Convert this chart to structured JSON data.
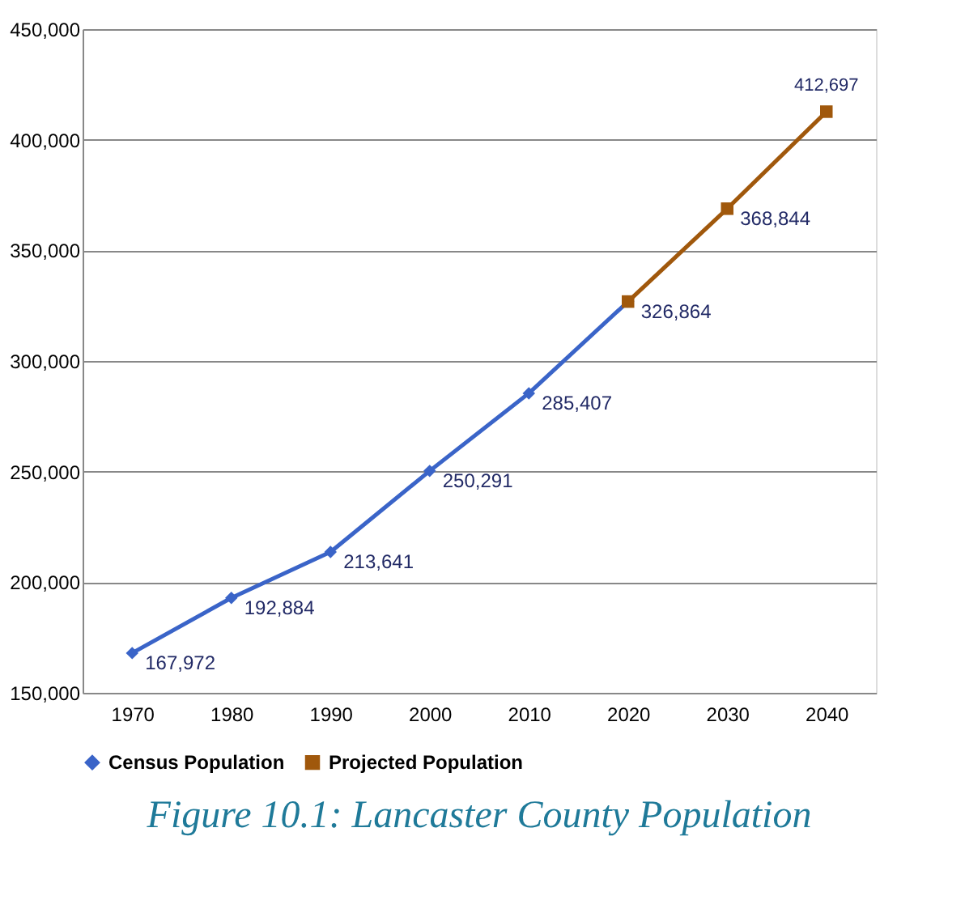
{
  "chart_data": {
    "type": "line",
    "title": "Figure 10.1: Lancaster County Population",
    "categories": [
      "1970",
      "1980",
      "1990",
      "2000",
      "2010",
      "2020",
      "2030",
      "2040"
    ],
    "series": [
      {
        "name": "Census Population",
        "color": "#3a64c8",
        "marker": "diamond",
        "values": [
          167972,
          192884,
          213641,
          250291,
          285407,
          326864,
          null,
          null
        ],
        "value_labels": [
          "167,972",
          "192,884",
          "213,641",
          "250,291",
          "285,407",
          "326,864",
          null,
          null
        ]
      },
      {
        "name": "Projected Population",
        "color": "#a0580c",
        "marker": "square",
        "values": [
          null,
          null,
          null,
          null,
          null,
          326864,
          368844,
          412697
        ],
        "value_labels": [
          null,
          null,
          null,
          null,
          null,
          null,
          "368,844",
          "412,697"
        ]
      }
    ],
    "ylim": [
      150000,
      450000
    ],
    "yticks": [
      {
        "value": 150000,
        "label": "150,000"
      },
      {
        "value": 200000,
        "label": "200,000"
      },
      {
        "value": 250000,
        "label": "250,000"
      },
      {
        "value": 300000,
        "label": "300,000"
      },
      {
        "value": 350000,
        "label": "350,000"
      },
      {
        "value": 400000,
        "label": "400,000"
      },
      {
        "value": 450000,
        "label": "450,000"
      }
    ],
    "grid": "y",
    "legend": "bottom"
  }
}
